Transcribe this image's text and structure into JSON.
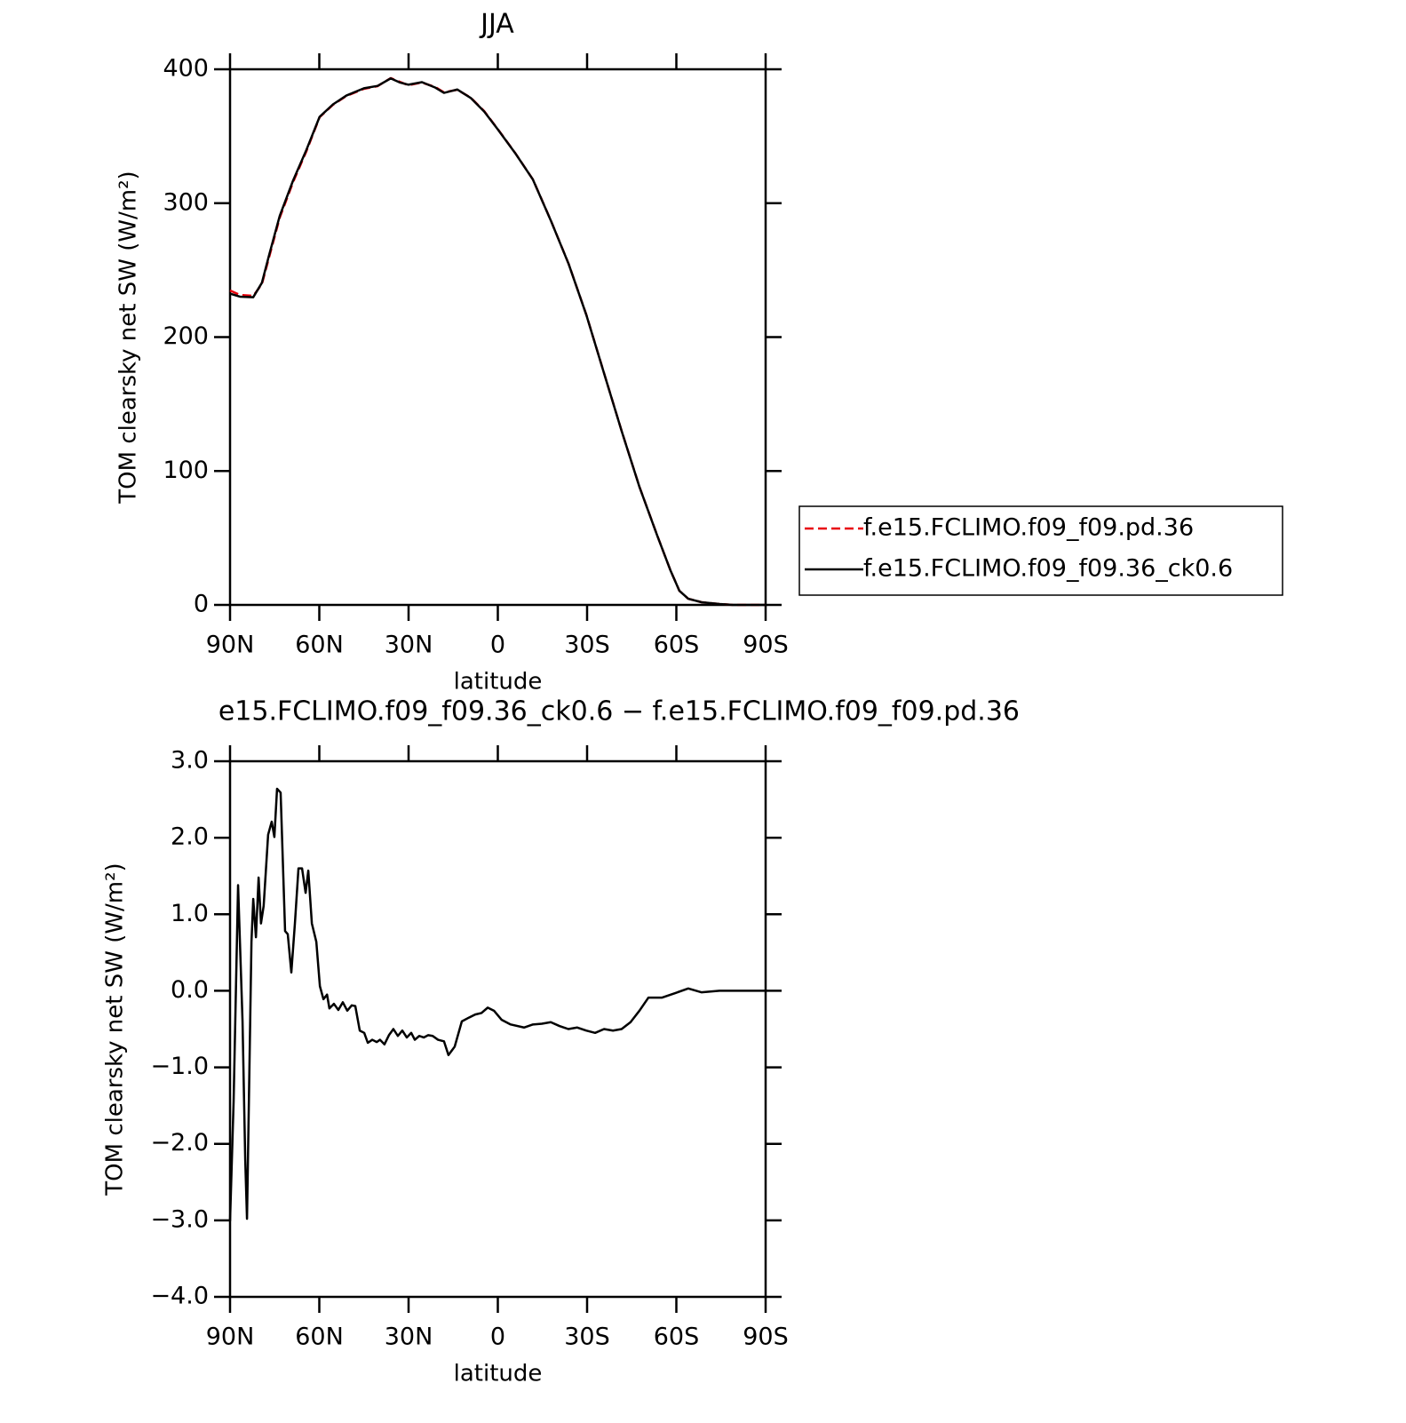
{
  "chart_data": [
    {
      "type": "line",
      "title": "JJA",
      "x_label": "latitude",
      "y_label": "TOM clearsky net SW (W/m²)",
      "x": [
        90,
        86.7,
        82.2,
        79.3,
        76.9,
        73.3,
        68.8,
        64.3,
        59.9,
        55.4,
        50.9,
        45,
        40.4,
        36,
        33,
        30.1,
        25.5,
        21,
        18.1,
        13.6,
        9.1,
        4.6,
        0.1,
        -5.8,
        -11.8,
        -17.8,
        -23.8,
        -29.8,
        -35.7,
        -41.6,
        -47.6,
        -53.6,
        -58,
        -61,
        -64,
        -68.5,
        -74.5,
        -79,
        -90
      ],
      "series": [
        {
          "name": "f.e15.FCLIMO.f09_f09.pd.36",
          "color": "#e8000b",
          "dashed": true,
          "values": [
            234.8,
            231.5,
            230.8,
            239.5,
            259.4,
            289.2,
            315.8,
            339,
            364.2,
            373.5,
            380.1,
            385.4,
            387.4,
            393.4,
            390.7,
            388.1,
            390.1,
            386.7,
            382.8,
            384.7,
            378.8,
            368.8,
            355.6,
            337.6,
            317.7,
            287.2,
            254.7,
            216.3,
            173.1,
            130,
            88.2,
            51.7,
            25.9,
            10.6,
            4.6,
            2,
            0.7,
            0,
            0
          ]
        },
        {
          "name": "f.e15.FCLIMO.f09_f09.36_ck0.6",
          "color": "#000000",
          "dashed": false,
          "values": [
            232.5,
            230.2,
            229.8,
            240.5,
            261,
            290.5,
            317,
            340,
            364.5,
            373.8,
            380.4,
            385.8,
            387.6,
            393.2,
            390.2,
            388.5,
            390.4,
            386.3,
            382.4,
            384.9,
            378.6,
            368.5,
            355.4,
            337.5,
            317.6,
            287.1,
            254.6,
            216.2,
            173,
            129.9,
            88.1,
            51.6,
            25.9,
            10.6,
            4.6,
            2,
            0.7,
            0,
            0
          ]
        }
      ],
      "xlim": [
        90,
        -90
      ],
      "ylim": [
        0,
        400
      ],
      "xticks": [
        {
          "value": 90,
          "label": "90N"
        },
        {
          "value": 60,
          "label": "60N"
        },
        {
          "value": 30,
          "label": "30N"
        },
        0,
        {
          "value": -30,
          "label": "30S"
        },
        {
          "value": -60,
          "label": "60S"
        },
        {
          "value": -90,
          "label": "90S"
        }
      ],
      "yticks": [
        0,
        100,
        200,
        300,
        400
      ],
      "legend": "right"
    },
    {
      "type": "line",
      "title": "e15.FCLIMO.f09_f09.36_ck0.6 − f.e15.FCLIMO.f09_f09.pd.36",
      "x_label": "latitude",
      "y_label": "TOM clearsky net SW (W/m²)",
      "x": [
        90,
        88.8,
        87.3,
        85.8,
        84.9,
        84.3,
        82.8,
        82.2,
        81.3,
        80.4,
        79.6,
        78.7,
        77.2,
        76,
        75.1,
        74.2,
        73,
        71.5,
        70.6,
        69.4,
        68.2,
        67,
        65.8,
        64.6,
        63.7,
        62.5,
        61,
        59.8,
        58.6,
        57.4,
        56.6,
        55.1,
        53.6,
        52.1,
        50.6,
        49.1,
        47.9,
        46.4,
        44.9,
        43.7,
        42.2,
        40.7,
        39.6,
        38.1,
        36.6,
        35.1,
        33.6,
        32.1,
        30.6,
        29.1,
        27.9,
        26.4,
        24.9,
        23.4,
        21.9,
        20.1,
        18.1,
        16.6,
        14.5,
        12.1,
        9.7,
        7.6,
        5.5,
        3.4,
        1.3,
        -1.3,
        -4.3,
        -8.8,
        -11.8,
        -14.8,
        -17.8,
        -20.7,
        -23.7,
        -26.7,
        -29.7,
        -32.7,
        -35.7,
        -38.7,
        -41.6,
        -44.6,
        -47.6,
        -50.6,
        -55.1,
        -59.6,
        -64,
        -68.5,
        -74.5,
        -90
      ],
      "series": [
        {
          "name": "f.e15.FCLIMO.f09_f09.36_ck0.6 − f.e15.FCLIMO.f09_f09.pd.36",
          "color": "#000000",
          "dashed": false,
          "values": [
            -3.01,
            -1.45,
            1.38,
            -0.4,
            -2.2,
            -2.98,
            0.64,
            1.2,
            0.7,
            1.48,
            0.88,
            1.11,
            2.04,
            2.21,
            2.01,
            2.64,
            2.59,
            0.78,
            0.74,
            0.24,
            0.88,
            1.6,
            1.6,
            1.28,
            1.57,
            0.88,
            0.64,
            0.06,
            -0.11,
            -0.05,
            -0.23,
            -0.17,
            -0.25,
            -0.15,
            -0.26,
            -0.19,
            -0.2,
            -0.52,
            -0.55,
            -0.68,
            -0.64,
            -0.67,
            -0.64,
            -0.7,
            -0.58,
            -0.5,
            -0.59,
            -0.52,
            -0.61,
            -0.55,
            -0.64,
            -0.59,
            -0.61,
            -0.58,
            -0.59,
            -0.64,
            -0.66,
            -0.84,
            -0.73,
            -0.4,
            -0.35,
            -0.31,
            -0.29,
            -0.22,
            -0.26,
            -0.38,
            -0.44,
            -0.48,
            -0.44,
            -0.43,
            -0.41,
            -0.46,
            -0.5,
            -0.48,
            -0.52,
            -0.55,
            -0.5,
            -0.52,
            -0.5,
            -0.41,
            -0.26,
            -0.09,
            -0.09,
            -0.03,
            0.03,
            -0.02,
            0,
            0
          ]
        }
      ],
      "xlim": [
        90,
        -90
      ],
      "ylim": [
        -4,
        3
      ],
      "xticks": [
        {
          "value": 90,
          "label": "90N"
        },
        {
          "value": 60,
          "label": "60N"
        },
        {
          "value": 30,
          "label": "30N"
        },
        0,
        {
          "value": -30,
          "label": "30S"
        },
        {
          "value": -60,
          "label": "60S"
        },
        {
          "value": -90,
          "label": "90S"
        }
      ],
      "yticks": [
        {
          "value": -4,
          "label": "−4.0"
        },
        {
          "value": -3,
          "label": "−3.0"
        },
        {
          "value": -2,
          "label": "−2.0"
        },
        {
          "value": -1,
          "label": "−1.0"
        },
        {
          "value": 0,
          "label": "0.0"
        },
        {
          "value": 1,
          "label": "1.0"
        },
        {
          "value": 2,
          "label": "2.0"
        },
        {
          "value": 3,
          "label": "3.0"
        }
      ]
    }
  ]
}
